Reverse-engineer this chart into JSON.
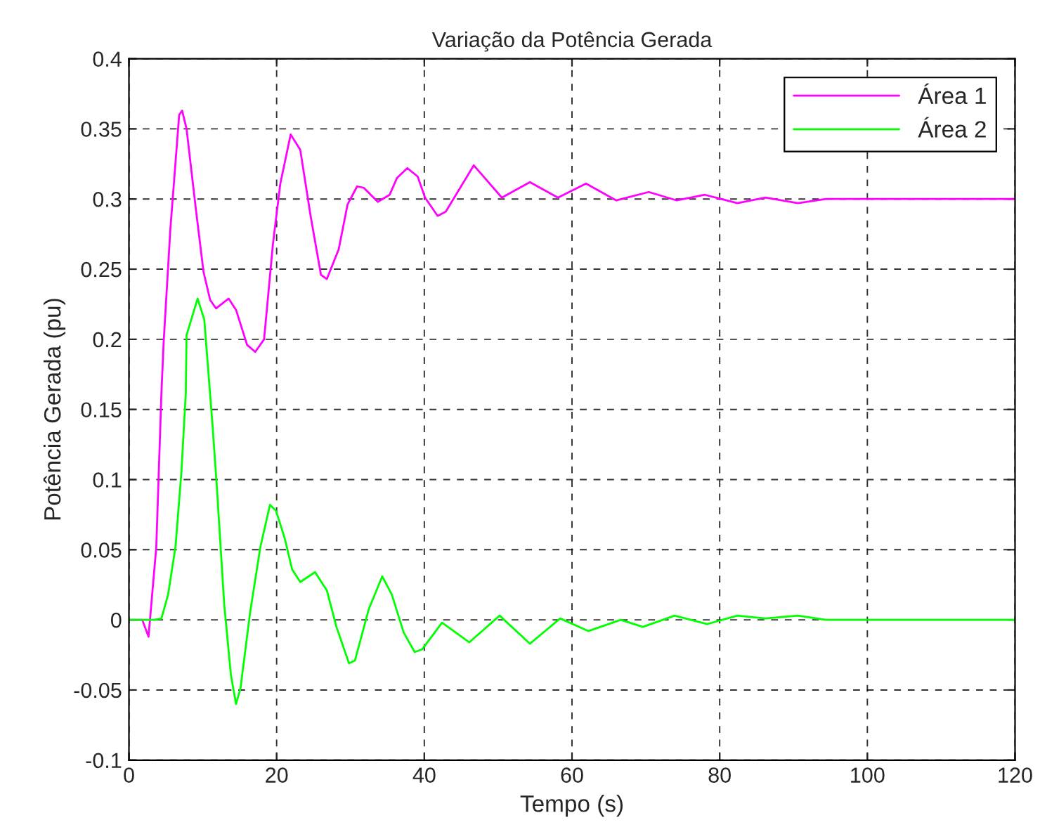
{
  "chart_data": {
    "type": "line",
    "title": "Variação da Potência Gerada",
    "xlabel": "Tempo (s)",
    "ylabel": "Potência Gerada (pu)",
    "xlim": [
      0,
      120
    ],
    "xticks": [
      0,
      20,
      40,
      60,
      80,
      100,
      120
    ],
    "ylim": [
      -0.1,
      0.4
    ],
    "yticks": [
      -0.1,
      -0.05,
      0,
      0.05,
      0.1,
      0.15,
      0.2,
      0.25,
      0.3,
      0.35,
      0.4
    ],
    "grid": true,
    "legend": "top right",
    "line_style": "solid",
    "marker": "none",
    "series": [
      {
        "name": "Área 1",
        "color": "#ff00ff",
        "x": [
          0,
          1.8,
          2.65,
          3.7,
          4.4,
          4.7,
          5.6,
          6.8,
          7.2,
          7.8,
          9.1,
          10.1,
          11.0,
          11.8,
          13.5,
          14.5,
          16.0,
          17.1,
          18.3,
          19.5,
          20.5,
          21.9,
          23.2,
          24.6,
          26.0,
          26.8,
          28.4,
          29.6,
          30.9,
          31.8,
          33.7,
          35.3,
          36.3,
          37.7,
          39.1,
          40.1,
          41.8,
          42.9,
          46.7,
          50.5,
          54.3,
          58.1,
          61.9,
          66.0,
          70.4,
          74.2,
          78.0,
          82.4,
          86.2,
          90.6,
          94.4,
          120
        ],
        "values": [
          0,
          0,
          -0.012,
          0.052,
          0.162,
          0.198,
          0.278,
          0.36,
          0.363,
          0.35,
          0.291,
          0.248,
          0.228,
          0.222,
          0.229,
          0.221,
          0.196,
          0.191,
          0.2,
          0.268,
          0.311,
          0.346,
          0.335,
          0.288,
          0.246,
          0.243,
          0.264,
          0.296,
          0.309,
          0.308,
          0.298,
          0.303,
          0.315,
          0.322,
          0.316,
          0.301,
          0.288,
          0.291,
          0.324,
          0.301,
          0.312,
          0.301,
          0.311,
          0.299,
          0.305,
          0.299,
          0.303,
          0.297,
          0.301,
          0.297,
          0.3,
          0.3
        ]
      },
      {
        "name": "Área 2",
        "color": "#00ff00",
        "x": [
          0,
          3.4,
          4.4,
          5.3,
          6.3,
          7.1,
          7.7,
          7.8,
          9.3,
          10.2,
          11.3,
          11.9,
          12.9,
          13.8,
          14.5,
          15.1,
          16.4,
          17.8,
          19.1,
          19.9,
          21.1,
          22.1,
          23.2,
          25.2,
          26.8,
          28.1,
          29.8,
          30.6,
          32.5,
          34.3,
          35.6,
          37.2,
          38.7,
          39.7,
          42.4,
          46.1,
          50.2,
          54.3,
          58.4,
          62.2,
          66.6,
          69.6,
          73.9,
          78.3,
          82.4,
          86.2,
          90.6,
          94.4,
          120
        ],
        "values": [
          0,
          0,
          0.001,
          0.018,
          0.052,
          0.105,
          0.162,
          0.203,
          0.229,
          0.214,
          0.14,
          0.095,
          0.011,
          -0.039,
          -0.06,
          -0.049,
          0.005,
          0.052,
          0.082,
          0.078,
          0.058,
          0.036,
          0.027,
          0.034,
          0.021,
          -0.005,
          -0.031,
          -0.029,
          0.008,
          0.031,
          0.018,
          -0.009,
          -0.023,
          -0.021,
          -0.002,
          -0.016,
          0.003,
          -0.017,
          0.001,
          -0.008,
          0,
          -0.005,
          0.003,
          -0.003,
          0.003,
          0.001,
          0.003,
          0,
          0
        ]
      }
    ]
  }
}
